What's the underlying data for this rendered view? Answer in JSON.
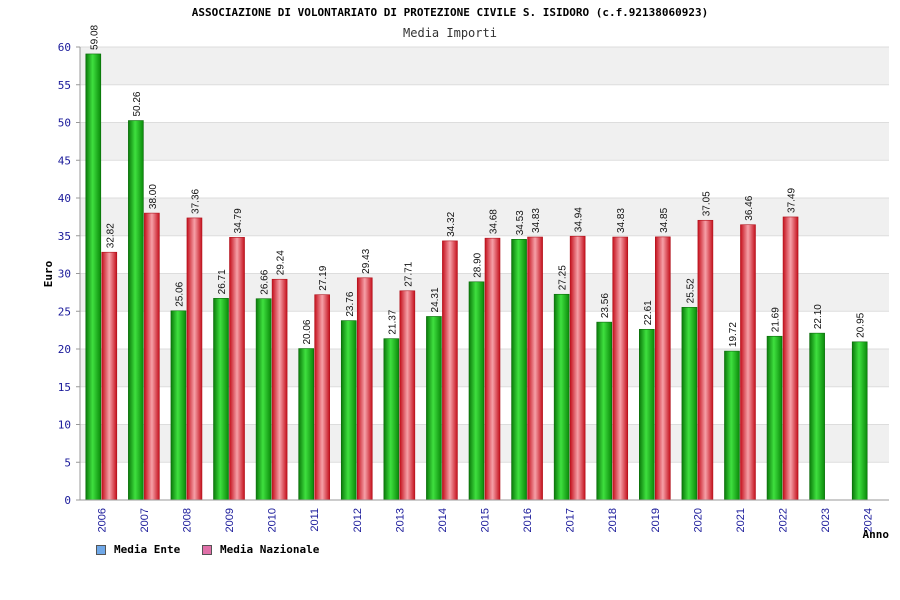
{
  "chart_data": {
    "type": "bar",
    "title": "ASSOCIAZIONE DI VOLONTARIATO DI PROTEZIONE CIVILE S. ISIDORO (c.f.92138060923)",
    "subtitle": "Media Importi",
    "ylabel": "Euro",
    "xlabel": "Anno",
    "ylim": [
      0,
      60
    ],
    "yticks": [
      0,
      5,
      10,
      15,
      20,
      25,
      30,
      35,
      40,
      45,
      50,
      55,
      60
    ],
    "categories": [
      "2006",
      "2007",
      "2008",
      "2009",
      "2010",
      "2011",
      "2012",
      "2013",
      "2014",
      "2015",
      "2016",
      "2017",
      "2018",
      "2019",
      "2020",
      "2021",
      "2022",
      "2023",
      "2024"
    ],
    "series": [
      {
        "name": "Media Ente",
        "color": "#22c022",
        "values": [
          59.08,
          50.26,
          25.06,
          26.71,
          26.66,
          20.06,
          23.76,
          21.37,
          24.31,
          28.9,
          34.53,
          27.25,
          23.56,
          22.61,
          25.52,
          19.72,
          21.69,
          22.1,
          20.95
        ],
        "labels": [
          "59.08",
          "50.26",
          "25.06",
          "26.71",
          "26.66",
          "20.06",
          "23.76",
          "21.37",
          "24.31",
          "28.90",
          "34.53",
          "27.25",
          "23.56",
          "22.61",
          "25.52",
          "19.72",
          "21.69",
          "22.10",
          "20.95"
        ]
      },
      {
        "name": "Media Nazionale",
        "color": "#e8303c",
        "values": [
          32.82,
          38.0,
          37.36,
          34.79,
          29.24,
          27.19,
          29.43,
          27.71,
          34.32,
          34.68,
          34.83,
          34.94,
          34.83,
          34.85,
          37.05,
          36.46,
          37.49,
          null,
          null
        ],
        "labels": [
          "32.82",
          "38.00",
          "37.36",
          "34.79",
          "29.24",
          "27.19",
          "29.43",
          "27.71",
          "34.32",
          "34.68",
          "34.83",
          "34.94",
          "34.83",
          "34.85",
          "37.05",
          "36.46",
          "37.49",
          null,
          null
        ]
      }
    ],
    "legend": [
      {
        "name": "Media Ente",
        "color": "#6fa8e8"
      },
      {
        "name": "Media Nazionale",
        "color": "#e070a8"
      }
    ],
    "grid": true,
    "legend_position": "bottom-left"
  }
}
